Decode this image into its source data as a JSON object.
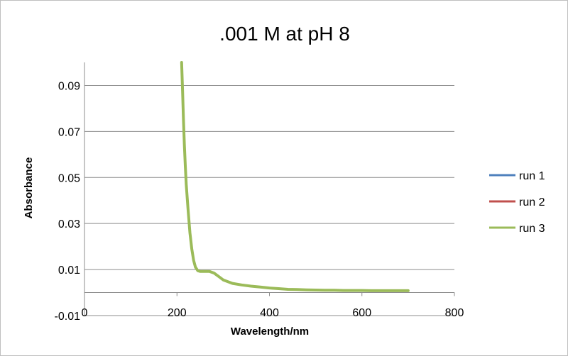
{
  "chart_data": {
    "type": "line",
    "title": ".001 M at pH 8",
    "xlabel": "Wavelength/nm",
    "ylabel": "Absorbance",
    "xlim": [
      0,
      800
    ],
    "ylim": [
      -0.01,
      0.1
    ],
    "xticks": [
      0,
      200,
      400,
      600,
      800
    ],
    "xtick_labels": [
      "0",
      "200",
      "400",
      "600",
      "800"
    ],
    "yticks": [
      -0.01,
      0.01,
      0.03,
      0.05,
      0.07,
      0.09
    ],
    "ytick_labels": [
      "-0.01",
      "0.01",
      "0.03",
      "0.05",
      "0.07",
      "0.09"
    ],
    "grid": true,
    "legend_position": "right",
    "series": [
      {
        "name": "run 1",
        "color": "#4f81bd",
        "x": [
          210,
          212,
          214,
          216,
          218,
          220,
          224,
          228,
          232,
          236,
          240,
          245,
          250,
          260,
          270,
          280,
          290,
          300,
          320,
          340,
          360,
          380,
          400,
          420,
          440,
          460,
          480,
          500,
          520,
          540,
          560,
          580,
          600,
          620,
          640,
          660,
          680,
          700
        ],
        "y": [
          0.1,
          0.088,
          0.075,
          0.064,
          0.055,
          0.047,
          0.036,
          0.026,
          0.019,
          0.014,
          0.011,
          0.0095,
          0.0092,
          0.0092,
          0.0092,
          0.0085,
          0.007,
          0.0055,
          0.004,
          0.0033,
          0.0028,
          0.0024,
          0.002,
          0.0017,
          0.0014,
          0.0013,
          0.0012,
          0.0011,
          0.001,
          0.001,
          0.0009,
          0.0009,
          0.0009,
          0.0008,
          0.0008,
          0.0008,
          0.0008,
          0.0008
        ]
      },
      {
        "name": "run 2",
        "color": "#c0504d",
        "x": [
          210,
          212,
          214,
          216,
          218,
          220,
          224,
          228,
          232,
          236,
          240,
          245,
          250,
          260,
          270,
          280,
          290,
          300,
          320,
          340,
          360,
          380,
          400,
          420,
          440,
          460,
          480,
          500,
          520,
          540,
          560,
          580,
          600,
          620,
          640,
          660,
          680,
          700
        ],
        "y": [
          0.1,
          0.088,
          0.075,
          0.064,
          0.055,
          0.047,
          0.036,
          0.026,
          0.019,
          0.014,
          0.011,
          0.0095,
          0.0092,
          0.0092,
          0.0092,
          0.0085,
          0.007,
          0.0055,
          0.004,
          0.0033,
          0.0028,
          0.0024,
          0.002,
          0.0017,
          0.0014,
          0.0013,
          0.0012,
          0.0011,
          0.001,
          0.001,
          0.0009,
          0.0009,
          0.0009,
          0.0008,
          0.0008,
          0.0008,
          0.0008,
          0.0008
        ]
      },
      {
        "name": "run 3",
        "color": "#9bbb59",
        "x": [
          210,
          212,
          214,
          216,
          218,
          220,
          224,
          228,
          232,
          236,
          240,
          245,
          250,
          260,
          270,
          280,
          290,
          300,
          320,
          340,
          360,
          380,
          400,
          420,
          440,
          460,
          480,
          500,
          520,
          540,
          560,
          580,
          600,
          620,
          640,
          660,
          680,
          700
        ],
        "y": [
          0.1,
          0.088,
          0.075,
          0.064,
          0.055,
          0.047,
          0.036,
          0.026,
          0.019,
          0.014,
          0.011,
          0.0095,
          0.0092,
          0.0092,
          0.0092,
          0.0085,
          0.007,
          0.0055,
          0.004,
          0.0033,
          0.0028,
          0.0024,
          0.002,
          0.0017,
          0.0014,
          0.0013,
          0.0012,
          0.0011,
          0.001,
          0.001,
          0.0009,
          0.0009,
          0.0009,
          0.0008,
          0.0008,
          0.0008,
          0.0008,
          0.0008
        ]
      }
    ]
  }
}
